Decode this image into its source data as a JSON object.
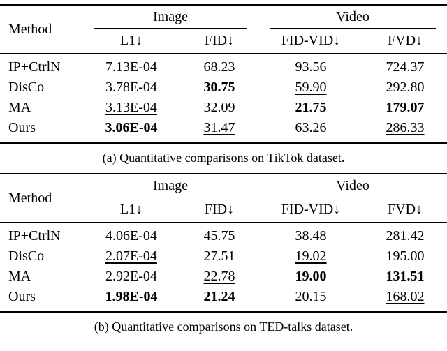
{
  "colors": {
    "text": "#000000",
    "background": "#ffffff",
    "rule": "#000000"
  },
  "tables": [
    {
      "id": "a",
      "caption": "(a) Quantitative comparisons on TikTok dataset.",
      "header": {
        "method": "Method",
        "groups": [
          {
            "label": "Image"
          },
          {
            "label": "Video"
          }
        ],
        "metrics": [
          "L1↓",
          "FID↓",
          "FID-VID↓",
          "FVD↓"
        ]
      },
      "rows": [
        {
          "method": "IP+CtrlN",
          "cells": [
            {
              "value": "7.13E-04",
              "emphasis": "none"
            },
            {
              "value": "68.23",
              "emphasis": "none"
            },
            {
              "value": "93.56",
              "emphasis": "none"
            },
            {
              "value": "724.37",
              "emphasis": "none"
            }
          ]
        },
        {
          "method": "DisCo",
          "cells": [
            {
              "value": "3.78E-04",
              "emphasis": "none"
            },
            {
              "value": "30.75",
              "emphasis": "bold"
            },
            {
              "value": "59.90",
              "emphasis": "underline"
            },
            {
              "value": "292.80",
              "emphasis": "none"
            }
          ]
        },
        {
          "method": "MA",
          "cells": [
            {
              "value": "3.13E-04",
              "emphasis": "underline"
            },
            {
              "value": "32.09",
              "emphasis": "none"
            },
            {
              "value": "21.75",
              "emphasis": "bold"
            },
            {
              "value": "179.07",
              "emphasis": "bold"
            }
          ]
        },
        {
          "method": "Ours",
          "cells": [
            {
              "value": "3.06E-04",
              "emphasis": "bold"
            },
            {
              "value": "31.47",
              "emphasis": "underline"
            },
            {
              "value": "63.26",
              "emphasis": "none"
            },
            {
              "value": "286.33",
              "emphasis": "underline"
            }
          ]
        }
      ]
    },
    {
      "id": "b",
      "caption": "(b) Quantitative comparisons on TED-talks dataset.",
      "header": {
        "method": "Method",
        "groups": [
          {
            "label": "Image"
          },
          {
            "label": "Video"
          }
        ],
        "metrics": [
          "L1↓",
          "FID↓",
          "FID-VID↓",
          "FVD↓"
        ]
      },
      "rows": [
        {
          "method": "IP+CtrlN",
          "cells": [
            {
              "value": "4.06E-04",
              "emphasis": "none"
            },
            {
              "value": "45.75",
              "emphasis": "none"
            },
            {
              "value": "38.48",
              "emphasis": "none"
            },
            {
              "value": "281.42",
              "emphasis": "none"
            }
          ]
        },
        {
          "method": "DisCo",
          "cells": [
            {
              "value": "2.07E-04",
              "emphasis": "underline"
            },
            {
              "value": "27.51",
              "emphasis": "none"
            },
            {
              "value": "19.02",
              "emphasis": "underline"
            },
            {
              "value": "195.00",
              "emphasis": "none"
            }
          ]
        },
        {
          "method": "MA",
          "cells": [
            {
              "value": "2.92E-04",
              "emphasis": "none"
            },
            {
              "value": "22.78",
              "emphasis": "underline"
            },
            {
              "value": "19.00",
              "emphasis": "bold"
            },
            {
              "value": "131.51",
              "emphasis": "bold"
            }
          ]
        },
        {
          "method": "Ours",
          "cells": [
            {
              "value": "1.98E-04",
              "emphasis": "bold"
            },
            {
              "value": "21.24",
              "emphasis": "bold"
            },
            {
              "value": "20.15",
              "emphasis": "none"
            },
            {
              "value": "168.02",
              "emphasis": "underline"
            }
          ]
        }
      ]
    }
  ]
}
